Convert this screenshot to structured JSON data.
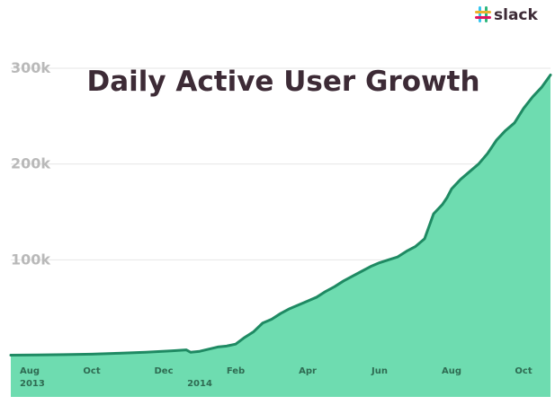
{
  "brand": {
    "logo_text": "slack",
    "logo_icon": "slack-hash-icon",
    "logo_colors": [
      "#e01563",
      "#36c5f0",
      "#2eb67d",
      "#ecb22e"
    ]
  },
  "colors": {
    "area_fill": "#6edcb0",
    "line": "#1f8a63",
    "grid": "#e6e6e6",
    "axis_text": "#b9b9b9",
    "x_tick_text": "#2f6b52",
    "title": "#3d2b36"
  },
  "chart_data": {
    "type": "area",
    "title": "Daily Active User Growth",
    "xlabel": "",
    "ylabel": "",
    "grid": true,
    "ylim": [
      0,
      300000
    ],
    "xlim": [
      0,
      60
    ],
    "y_ticks": [
      {
        "value": 300000,
        "label": "300k"
      },
      {
        "value": 200000,
        "label": "200k"
      },
      {
        "value": 100000,
        "label": "100k"
      }
    ],
    "x_ticks": [
      {
        "value": 1,
        "label": "Aug",
        "sublabel": "2013"
      },
      {
        "value": 9,
        "label": "Oct",
        "sublabel": ""
      },
      {
        "value": 17,
        "label": "Dec",
        "sublabel": ""
      },
      {
        "value": 21,
        "label": "",
        "sublabel": "2014"
      },
      {
        "value": 25,
        "label": "Feb",
        "sublabel": ""
      },
      {
        "value": 33,
        "label": "Apr",
        "sublabel": ""
      },
      {
        "value": 41,
        "label": "Jun",
        "sublabel": ""
      },
      {
        "value": 49,
        "label": "Aug",
        "sublabel": ""
      },
      {
        "value": 57,
        "label": "Oct",
        "sublabel": ""
      }
    ],
    "series": [
      {
        "name": "Daily Active Users",
        "x": [
          0,
          3,
          6,
          9,
          12,
          15,
          18,
          19.5,
          20,
          21,
          23,
          24,
          25,
          26,
          27,
          28,
          29,
          30,
          31,
          32,
          33,
          34,
          35,
          36,
          37,
          38,
          39,
          40,
          41,
          42,
          43,
          44,
          45,
          46,
          47,
          48,
          48.5,
          49,
          50,
          51,
          52,
          53,
          54,
          55,
          56,
          57,
          58,
          59,
          60
        ],
        "values": [
          500,
          700,
          1000,
          1500,
          2500,
          3500,
          5000,
          6000,
          3500,
          4500,
          9000,
          10000,
          12000,
          19000,
          25000,
          34000,
          38000,
          44000,
          49000,
          53000,
          57000,
          61000,
          67000,
          72000,
          78000,
          83000,
          88000,
          93000,
          97000,
          100000,
          103000,
          109000,
          114000,
          122000,
          148000,
          158000,
          165000,
          174000,
          184000,
          192000,
          200000,
          211000,
          225000,
          235000,
          243000,
          258000,
          270000,
          280000,
          293000
        ]
      }
    ]
  }
}
